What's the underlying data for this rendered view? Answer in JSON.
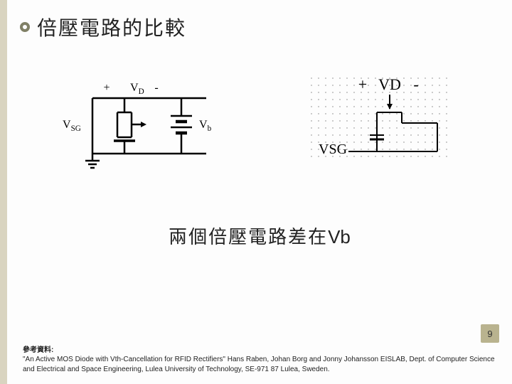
{
  "title": "倍壓電路的比較",
  "caption_prefix": "兩個倍壓電路差在",
  "caption_var": "Vb",
  "page_number": "9",
  "reference_label": "參考資料:",
  "reference_text": "\"An Active MOS Diode with Vth-Cancellation for RFID Rectifiers\"  Hans Raben, Johan Borg and Jonny Johansson EISLAB, Dept. of Computer Science and Electrical and Space Engineering, Lulea University of Technology, SE-971 87 Lulea, Sweden.",
  "left_circuit": {
    "labels": {
      "vsg": "V",
      "vsg_sub": "SG",
      "vd": "V",
      "vd_sub": "D",
      "vb": "V",
      "vb_sub": "b",
      "plus": "+",
      "minus": "-"
    },
    "stroke": "#000000",
    "stroke_width": 2.5,
    "font_family": "Times New Roman, serif",
    "label_fontsize": 16
  },
  "right_circuit": {
    "labels": {
      "vd_plus": "+",
      "vd": "VD",
      "vd_minus": "-",
      "vsg": "VSG"
    },
    "grid_dot_color": "#808080",
    "stroke": "#000000",
    "stroke_width": 2,
    "font_family": "Times New Roman, serif",
    "label_fontsize": 22,
    "vsg_fontsize": 20,
    "grid_cols": 20,
    "grid_rows": 12,
    "grid_spacing": 10
  }
}
